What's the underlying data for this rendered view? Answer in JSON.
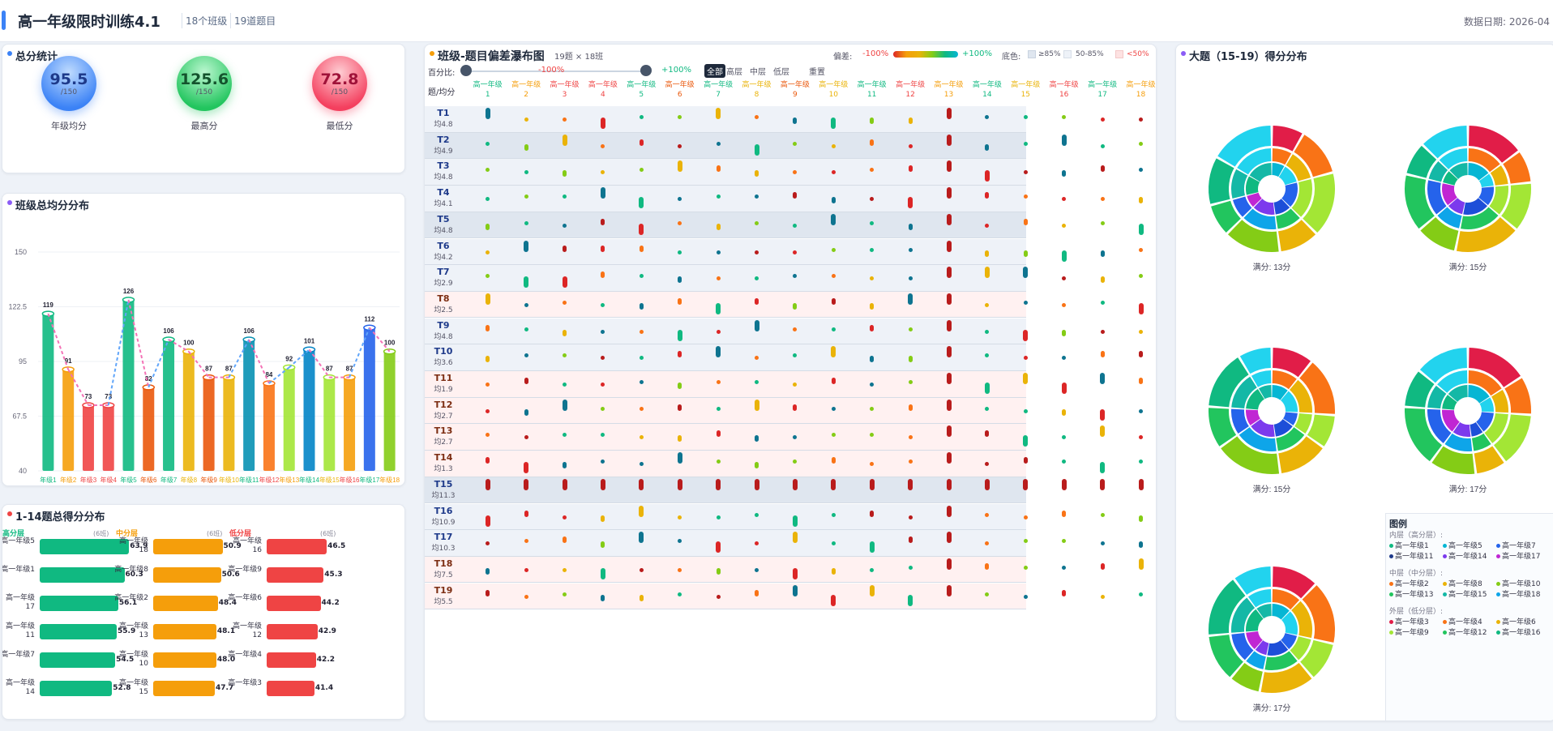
{
  "header": {
    "title": "高一年级限时训练4.1",
    "classes": "18个班级",
    "questions": "19道题目",
    "date": "数据日期: 2026-04"
  },
  "stats": {
    "title": "总分统计",
    "items": [
      {
        "value": "95.5",
        "sub": "/150",
        "label": "年级均分",
        "color": "#3b82f6"
      },
      {
        "value": "125.6",
        "sub": "/150",
        "label": "最高分",
        "color": "#22c55e"
      },
      {
        "value": "72.8",
        "sub": "/150",
        "label": "最低分",
        "color": "#ef4444"
      }
    ]
  },
  "class_chart": {
    "title": "班级总均分分布",
    "yticks": [
      "150",
      "122.5",
      "95",
      "67.5",
      "40"
    ]
  },
  "chart_data": {
    "type": "bar",
    "title": "班级总均分分布",
    "categories": [
      "年级1",
      "年级2",
      "年级3",
      "年级4",
      "年级5",
      "年级6",
      "年级7",
      "年级8",
      "年级9",
      "年级10",
      "年级11",
      "年级12",
      "年级13",
      "年级14",
      "年级15",
      "年级16",
      "年级17",
      "年级18"
    ],
    "values": [
      119,
      91,
      73,
      73,
      126,
      82,
      106,
      100,
      87,
      87,
      106,
      84,
      92,
      101,
      87,
      87,
      112,
      100
    ],
    "ylim": [
      40,
      150
    ],
    "colors": [
      "#10b981",
      "#f59e0b",
      "#ef4444",
      "#ef4444",
      "#10b981",
      "#ea580c",
      "#10b981",
      "#eab308",
      "#ea580c",
      "#eab308",
      "#0891b2",
      "#f97316",
      "#a3e635",
      "#0284c7",
      "#a3e635",
      "#f59e0b",
      "#2563eb",
      "#84cc16"
    ],
    "xtick_colors": [
      "#10b981",
      "#f59e0b",
      "#ef4444",
      "#ef4444",
      "#10b981",
      "#ea580c",
      "#10b981",
      "#eab308",
      "#ea580c",
      "#eab308",
      "#10b981",
      "#ef4444",
      "#f59e0b",
      "#10b981",
      "#eab308",
      "#ef4444",
      "#10b981",
      "#f59e0b"
    ]
  },
  "dist": {
    "title": "1-14题总得分分布",
    "groups": [
      {
        "name": "高分层",
        "count": "(6班)",
        "color": "#10b981",
        "rows": [
          {
            "label": "高一年级5",
            "v": "63.9",
            "pct": 0.58
          },
          {
            "label": "高一年级1",
            "v": "60.3",
            "pct": 0.55
          },
          {
            "label": "高一年级17",
            "v": "56.1",
            "pct": 0.51
          },
          {
            "label": "高一年级11",
            "v": "55.9",
            "pct": 0.5
          },
          {
            "label": "高一年级7",
            "v": "54.5",
            "pct": 0.49
          },
          {
            "label": "高一年级14",
            "v": "52.8",
            "pct": 0.47
          }
        ]
      },
      {
        "name": "中分层",
        "count": "(6班)",
        "color": "#f59e0b",
        "rows": [
          {
            "label": "高一年级18",
            "v": "50.9",
            "pct": 0.45
          },
          {
            "label": "高一年级8",
            "v": "50.6",
            "pct": 0.44
          },
          {
            "label": "高一年级2",
            "v": "48.4",
            "pct": 0.42
          },
          {
            "label": "高一年级13",
            "v": "48.1",
            "pct": 0.41
          },
          {
            "label": "高一年级10",
            "v": "48.0",
            "pct": 0.41
          },
          {
            "label": "高一年级15",
            "v": "47.7",
            "pct": 0.4
          }
        ]
      },
      {
        "name": "低分层",
        "count": "(6班)",
        "color": "#ef4444",
        "rows": [
          {
            "label": "高一年级16",
            "v": "46.5",
            "pct": 0.39
          },
          {
            "label": "高一年级9",
            "v": "45.3",
            "pct": 0.37
          },
          {
            "label": "高一年级6",
            "v": "44.2",
            "pct": 0.35
          },
          {
            "label": "高一年级12",
            "v": "42.9",
            "pct": 0.33
          },
          {
            "label": "高一年级4",
            "v": "42.2",
            "pct": 0.32
          },
          {
            "label": "高一年级3",
            "v": "41.4",
            "pct": 0.31
          }
        ]
      }
    ]
  },
  "waterfall": {
    "title": "班级-题目偏差瀑布图",
    "meta": "19题 × 18班",
    "bias_label": "偏差:",
    "bias_min": "-100%",
    "bias_max": "+100%",
    "bg_label": "底色:",
    "bg1": "≥85%",
    "bg2": "50-85%",
    "bg3": "<50%",
    "pct_label": "百分比:",
    "pct_min": "-100%",
    "pct_max": "+100%",
    "filters": [
      "全部",
      "高层",
      "中层",
      "低层"
    ],
    "reset": "重置",
    "corner": "题/均分",
    "columns": [
      "高一年级1",
      "高一年级2",
      "高一年级3",
      "高一年级4",
      "高一年级5",
      "高一年级6",
      "高一年级7",
      "高一年级8",
      "高一年级9",
      "高一年级10",
      "高一年级11",
      "高一年级12",
      "高一年级13",
      "高一年级14",
      "高一年级15",
      "高一年级16",
      "高一年级17",
      "高一年级18"
    ],
    "col_colors": [
      "#10b981",
      "#f59e0b",
      "#ef4444",
      "#ef4444",
      "#10b981",
      "#ea580c",
      "#10b981",
      "#eab308",
      "#ea580c",
      "#eab308",
      "#10b981",
      "#ef4444",
      "#f59e0b",
      "#10b981",
      "#eab308",
      "#ef4444",
      "#10b981",
      "#f59e0b"
    ],
    "rows": [
      {
        "q": "T1",
        "avg": "均4.8",
        "bg": "#eef2f8"
      },
      {
        "q": "T2",
        "avg": "均4.9",
        "bg": "#dfe6ef"
      },
      {
        "q": "T3",
        "avg": "均4.8",
        "bg": "#eef2f8"
      },
      {
        "q": "T4",
        "avg": "均4.1",
        "bg": "#eef2f8"
      },
      {
        "q": "T5",
        "avg": "均4.8",
        "bg": "#dfe6ef"
      },
      {
        "q": "T6",
        "avg": "均4.2",
        "bg": "#eef2f8"
      },
      {
        "q": "T7",
        "avg": "均2.9",
        "bg": "#eef2f8"
      },
      {
        "q": "T8",
        "avg": "均2.5",
        "bg": "#fff1f1"
      },
      {
        "q": "T9",
        "avg": "均4.8",
        "bg": "#eef2f8"
      },
      {
        "q": "T10",
        "avg": "均3.6",
        "bg": "#eef2f8"
      },
      {
        "q": "T11",
        "avg": "均1.9",
        "bg": "#fff1f1"
      },
      {
        "q": "T12",
        "avg": "均2.7",
        "bg": "#fff1f1"
      },
      {
        "q": "T13",
        "avg": "均2.7",
        "bg": "#fff1f1"
      },
      {
        "q": "T14",
        "avg": "均1.3",
        "bg": "#fff1f1"
      },
      {
        "q": "T15",
        "avg": "均11.3",
        "bg": "#dfe6ef"
      },
      {
        "q": "T16",
        "avg": "均10.9",
        "bg": "#eef2f8"
      },
      {
        "q": "T17",
        "avg": "均10.3",
        "bg": "#eef2f8"
      },
      {
        "q": "T18",
        "avg": "均7.5",
        "bg": "#fff1f1"
      },
      {
        "q": "T19",
        "avg": "均5.5",
        "bg": "#fff1f1"
      }
    ]
  },
  "big": {
    "title": "大题（15-19）得分分布",
    "donuts": [
      {
        "label": "满分: 13分"
      },
      {
        "label": "满分: 15分"
      },
      {
        "label": "满分: 15分"
      },
      {
        "label": "满分: 17分"
      },
      {
        "label": "满分: 17分"
      }
    ],
    "legend": {
      "title": "图例",
      "inner": "内层（高分层）:",
      "inner_items": [
        "高一年级1",
        "高一年级5",
        "高一年级7",
        "高一年级11",
        "高一年级14",
        "高一年级17"
      ],
      "mid": "中层（中分层）:",
      "mid_items": [
        "高一年级2",
        "高一年级8",
        "高一年级10",
        "高一年级13",
        "高一年级15",
        "高一年级18"
      ],
      "outer": "外层（低分层）:",
      "outer_items": [
        "高一年级3",
        "高一年级4",
        "高一年级6",
        "高一年级9",
        "高一年级12",
        "高一年级16"
      ]
    }
  }
}
